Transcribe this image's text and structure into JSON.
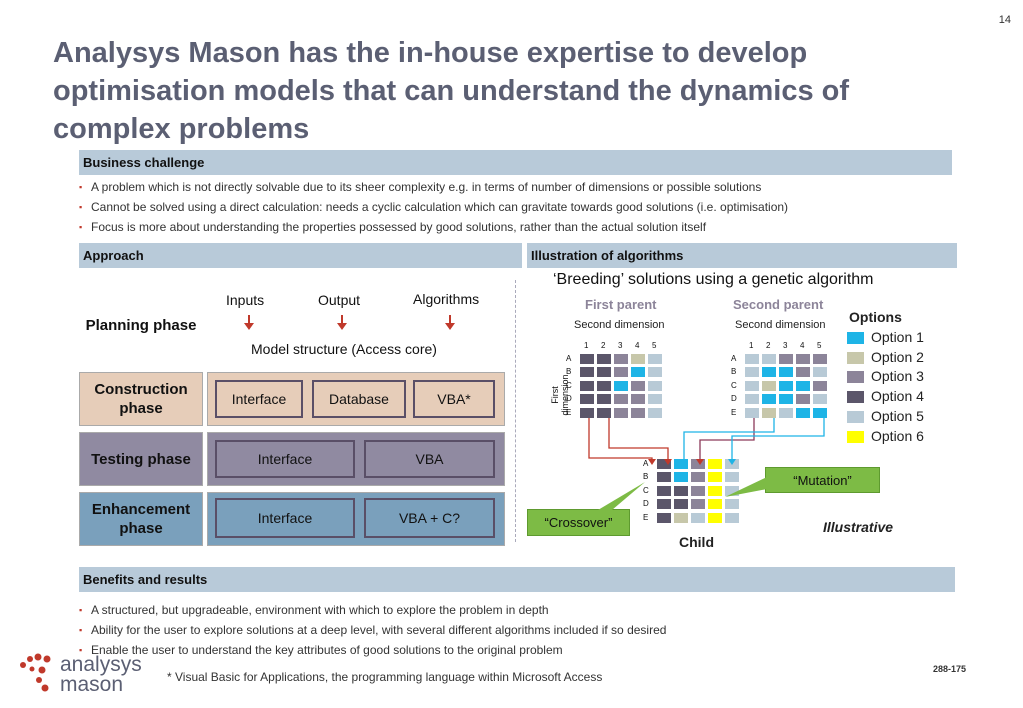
{
  "page_number": "14",
  "title": "Analysys Mason has the in-house expertise to develop optimisation models that can understand the dynamics of complex problems",
  "business": {
    "header": "Business challenge",
    "bullets": [
      "A problem which is not directly solvable due to its sheer complexity e.g. in terms of number of dimensions or possible solutions",
      "Cannot be solved using a direct calculation: needs a cyclic calculation which can gravitate towards good solutions (i.e. optimisation)",
      "Focus is more about understanding the properties possessed by good solutions, rather than the actual solution itself"
    ]
  },
  "approach": {
    "header": "Approach",
    "planning": {
      "label": "Planning phase",
      "inputs": "Inputs",
      "output": "Output",
      "algorithms": "Algorithms",
      "model": "Model structure (Access core)"
    },
    "construction": {
      "label": "Construction phase",
      "boxes": [
        "Interface",
        "Database",
        "VBA*"
      ],
      "color": "#e6cdb9"
    },
    "testing": {
      "label": "Testing phase",
      "boxes": [
        "Interface",
        "VBA"
      ],
      "color": "#908aa1"
    },
    "enhancement": {
      "label": "Enhancement phase",
      "boxes": [
        "Interface",
        "VBA + C?"
      ],
      "color": "#7aa0bc"
    }
  },
  "illustration": {
    "header": "Illustration of algorithms",
    "subtitle": "‘Breeding’ solutions using a genetic algorithm",
    "first_parent": "First parent",
    "second_parent": "Second parent",
    "second_dimension": "Second dimension",
    "first_dimension": "First dimension",
    "columns": [
      "1",
      "2",
      "3",
      "4",
      "5"
    ],
    "rows": [
      "A",
      "B",
      "C",
      "D",
      "E"
    ],
    "parent1_grid": [
      [
        4,
        4,
        3,
        2,
        5
      ],
      [
        4,
        4,
        3,
        1,
        5
      ],
      [
        4,
        4,
        1,
        3,
        5
      ],
      [
        4,
        4,
        3,
        3,
        5
      ],
      [
        4,
        4,
        3,
        3,
        5
      ]
    ],
    "parent2_grid": [
      [
        5,
        5,
        3,
        3,
        3
      ],
      [
        5,
        1,
        1,
        3,
        5
      ],
      [
        5,
        2,
        1,
        1,
        3
      ],
      [
        5,
        1,
        1,
        3,
        5
      ],
      [
        5,
        2,
        5,
        1,
        1
      ]
    ],
    "child_grid": [
      [
        4,
        1,
        3,
        6,
        5
      ],
      [
        4,
        1,
        3,
        6,
        5
      ],
      [
        4,
        4,
        3,
        6,
        5
      ],
      [
        4,
        4,
        3,
        6,
        5
      ],
      [
        4,
        2,
        5,
        6,
        5
      ]
    ],
    "options_title": "Options",
    "options": [
      {
        "label": "Option 1",
        "color": "#1eb4e6"
      },
      {
        "label": "Option 2",
        "color": "#c7c7aa"
      },
      {
        "label": "Option 3",
        "color": "#8c8499"
      },
      {
        "label": "Option 4",
        "color": "#5b566a"
      },
      {
        "label": "Option 5",
        "color": "#b8cad6"
      },
      {
        "label": "Option 6",
        "color": "#ffff00"
      }
    ],
    "mutation": "“Mutation”",
    "crossover": "“Crossover”",
    "illustrative": "Illustrative",
    "child": "Child"
  },
  "benefits": {
    "header": "Benefits and results",
    "bullets": [
      "A structured, but upgradeable, environment with which to explore the problem in depth",
      "Ability for the user to explore solutions at a deep level, with several different algorithms included if so desired",
      "Enable the user to understand the key attributes of good solutions to the original problem"
    ]
  },
  "footnote": "* Visual Basic for Applications, the programming language within Microsoft Access",
  "ref": "288-175",
  "logo": {
    "line1": "analysys",
    "line2": "mason"
  }
}
